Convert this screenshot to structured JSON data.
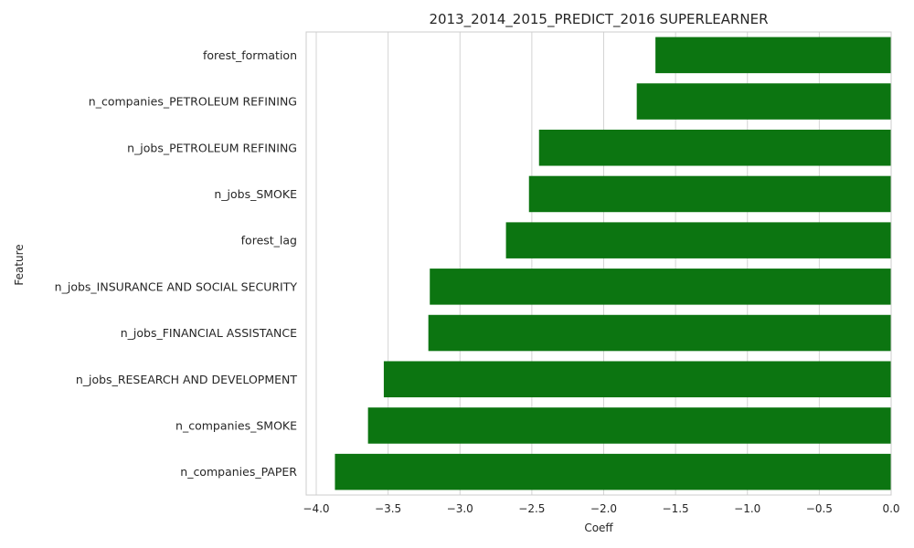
{
  "chart_data": {
    "type": "bar",
    "orientation": "horizontal",
    "title": "2013_2014_2015_PREDICT_2016 SUPERLEARNER",
    "xlabel": "Coeff",
    "ylabel": "Feature",
    "xlim": [
      -4.07,
      0.0
    ],
    "xticks": [
      -4.0,
      -3.5,
      -3.0,
      -2.5,
      -2.0,
      -1.5,
      -1.0,
      -0.5,
      0.0
    ],
    "xtick_labels": [
      "−4.0",
      "−3.5",
      "−3.0",
      "−2.5",
      "−2.0",
      "−1.5",
      "−1.0",
      "−0.5",
      "0.0"
    ],
    "grid": true,
    "bar_color": "#0c7511",
    "categories": [
      "forest_formation",
      "n_companies_PETROLEUM REFINING",
      "n_jobs_PETROLEUM REFINING",
      "n_jobs_SMOKE",
      "forest_lag",
      "n_jobs_INSURANCE AND SOCIAL SECURITY",
      "n_jobs_FINANCIAL ASSISTANCE",
      "n_jobs_RESEARCH AND DEVELOPMENT",
      "n_companies_SMOKE",
      "n_companies_PAPER"
    ],
    "values": [
      -1.64,
      -1.77,
      -2.45,
      -2.52,
      -2.68,
      -3.21,
      -3.22,
      -3.53,
      -3.64,
      -3.87
    ]
  }
}
